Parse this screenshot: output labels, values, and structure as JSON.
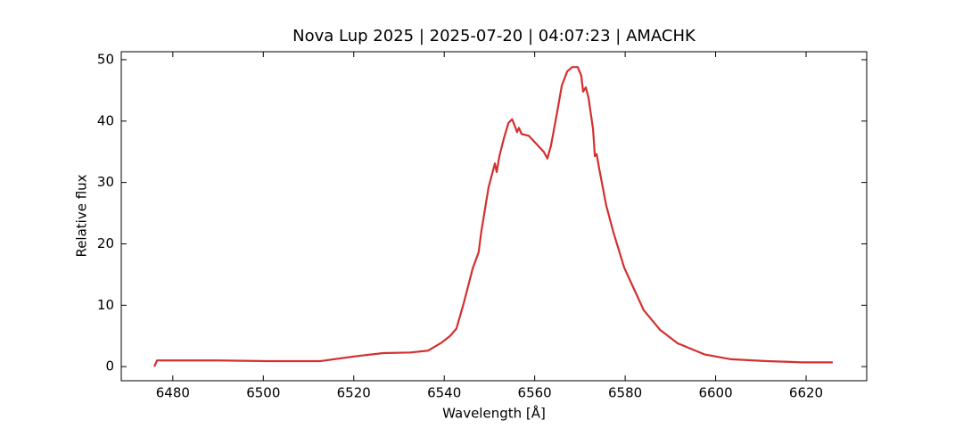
{
  "chart_data": {
    "type": "line",
    "title": "Nova Lup 2025 | 2025-07-20 | 04:07:23 | AMACHK",
    "x_label": "Wavelength [Å]",
    "y_label": "Relative flux",
    "color": "#d32f2f",
    "x": [
      6475.9,
      6476.5,
      6490,
      6500.9,
      6512.7,
      6520.6,
      6526.5,
      6532.5,
      6536.4,
      6539.4,
      6541.3,
      6542.7,
      6544.3,
      6546.3,
      6547.6,
      6548.2,
      6549.8,
      6551.2,
      6551.6,
      6552.2,
      6553.2,
      6554.2,
      6555.0,
      6555.5,
      6556.1,
      6556.5,
      6557.1,
      6558.7,
      6560.1,
      6562.0,
      6562.8,
      6563.6,
      6565.0,
      6566.0,
      6567.2,
      6568.3,
      6569.5,
      6570.3,
      6570.7,
      6571.3,
      6571.9,
      6572.9,
      6573.3,
      6573.7,
      6574.3,
      6575.8,
      6577.4,
      6579.8,
      6581.8,
      6584.1,
      6587.7,
      6591.6,
      6597.5,
      6603.4,
      6611.3,
      6619.2,
      6625.9
    ],
    "values": [
      0,
      1.0,
      1.0,
      0.9,
      0.9,
      1.7,
      2.2,
      2.3,
      2.6,
      3.9,
      5.0,
      6.2,
      10.3,
      16.0,
      18.6,
      22.0,
      29.2,
      33.1,
      31.7,
      34.3,
      37.2,
      39.7,
      40.3,
      39.4,
      38.2,
      38.9,
      37.9,
      37.6,
      36.5,
      35.0,
      33.9,
      36.0,
      41.6,
      45.8,
      48.1,
      48.8,
      48.8,
      47.4,
      44.8,
      45.5,
      43.8,
      38.7,
      34.3,
      34.6,
      32.1,
      26.3,
      21.9,
      16.1,
      12.9,
      9.2,
      6.0,
      3.8,
      2.0,
      1.2,
      0.9,
      0.7,
      0.7
    ],
    "xlim": [
      6468.6,
      6633.4
    ],
    "ylim": [
      -2.3,
      51.3
    ],
    "xticks": [
      6480,
      6500,
      6520,
      6540,
      6560,
      6580,
      6600,
      6620
    ],
    "yticks": [
      0,
      10,
      20,
      30,
      40,
      50
    ]
  }
}
